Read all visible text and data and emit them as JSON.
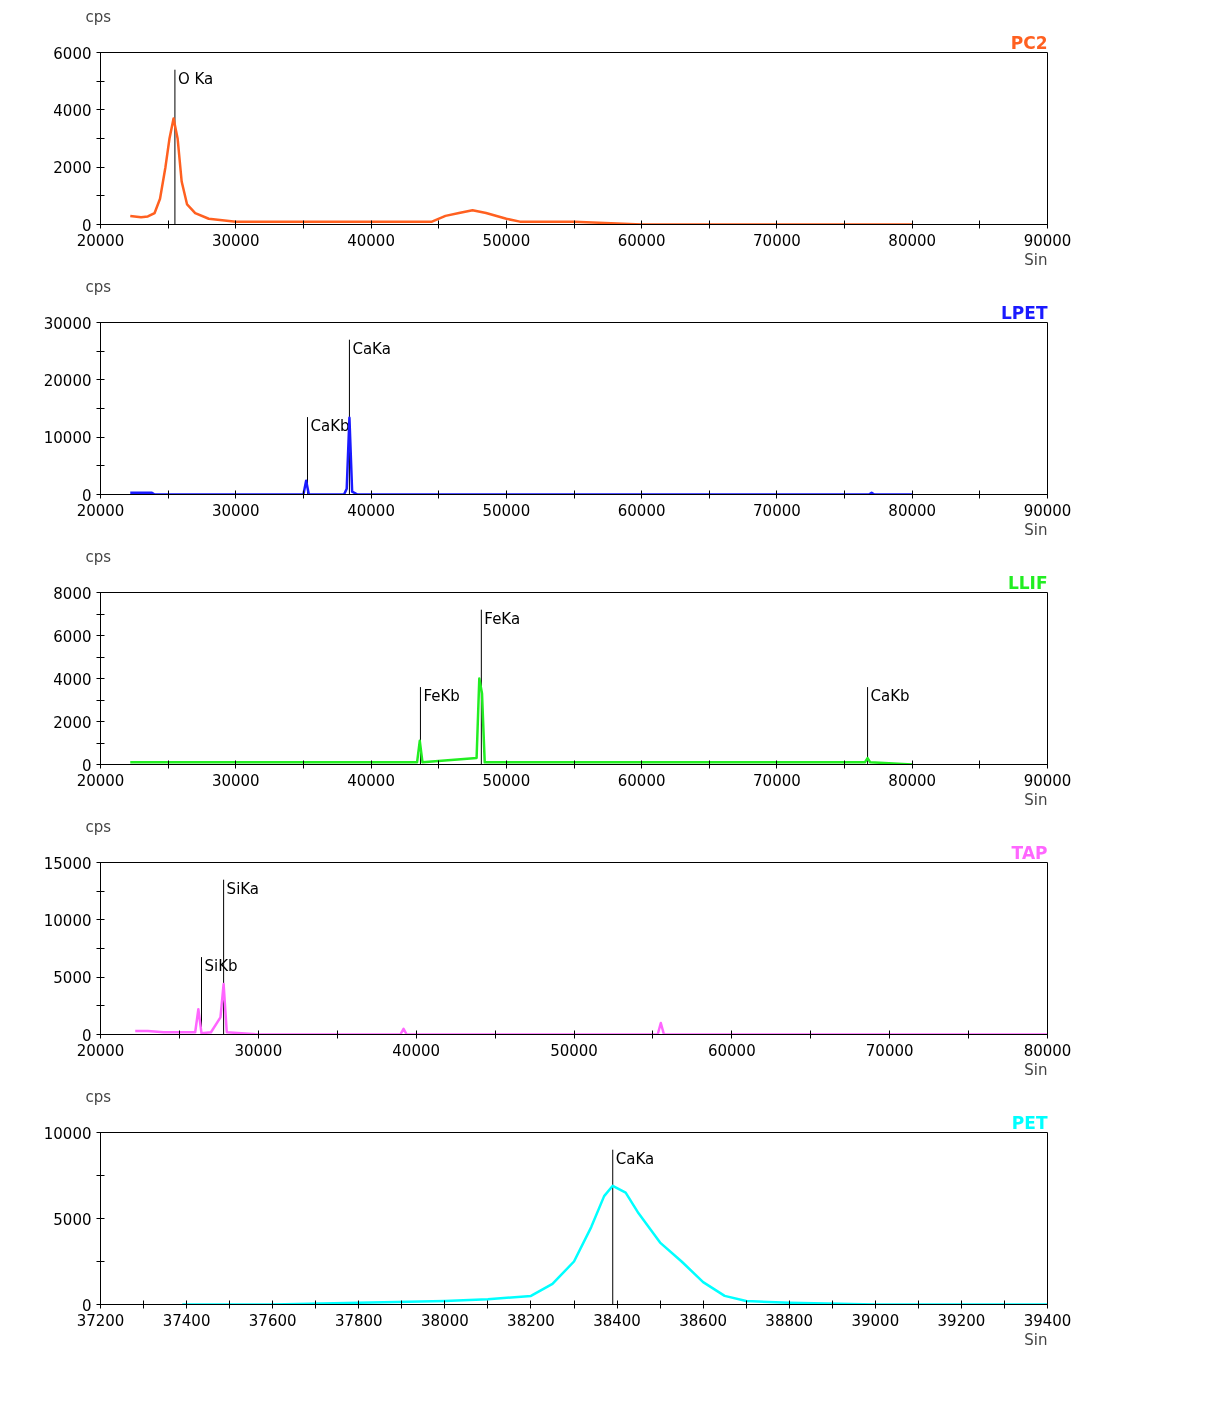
{
  "chart_data": [
    {
      "type": "line",
      "ylabel": "cps",
      "xlabel": "Sin",
      "grid": false,
      "series": [
        {
          "name": "PC2",
          "color": "#ff6020",
          "x": [
            22200,
            23000,
            23500,
            24000,
            24400,
            24800,
            25100,
            25400,
            25700,
            26000,
            26400,
            27000,
            28000,
            30000,
            35000,
            40000,
            44500,
            45500,
            46500,
            47500,
            48500,
            50000,
            51000,
            55000,
            60000,
            70000,
            80000
          ],
          "values": [
            300,
            250,
            280,
            400,
            900,
            2000,
            3000,
            3700,
            3000,
            1500,
            700,
            400,
            200,
            100,
            100,
            100,
            100,
            300,
            400,
            500,
            400,
            200,
            100,
            100,
            0,
            0,
            0
          ]
        }
      ],
      "xlim": [
        20000,
        90000
      ],
      "ylim": [
        0,
        6000
      ],
      "xticks": [
        20000,
        {
          "value": 25000,
          "label": null
        },
        30000,
        {
          "value": 35000,
          "label": null
        },
        40000,
        {
          "value": 45000,
          "label": null
        },
        50000,
        {
          "value": 55000,
          "label": null
        },
        60000,
        {
          "value": 65000,
          "label": null
        },
        70000,
        {
          "value": 75000,
          "label": null
        },
        80000,
        {
          "value": 85000,
          "label": null
        },
        90000
      ],
      "yticks": [
        0,
        {
          "value": 1000,
          "label": null
        },
        2000,
        {
          "value": 3000,
          "label": null
        },
        4000,
        {
          "value": 5000,
          "label": null
        },
        6000
      ],
      "ref_lines": [
        {
          "axis": "x",
          "value": 25500,
          "label": "O Ka"
        }
      ]
    },
    {
      "type": "line",
      "ylabel": "cps",
      "xlabel": "Sin",
      "grid": false,
      "series": [
        {
          "name": "LPET",
          "color": "#1a1aff",
          "x": [
            22200,
            23800,
            24000,
            35000,
            35200,
            35400,
            38000,
            38200,
            38400,
            38600,
            39000,
            76800,
            77000,
            77200,
            80000
          ],
          "values": [
            300,
            300,
            0,
            0,
            2400,
            0,
            0,
            1000,
            13400,
            500,
            0,
            0,
            300,
            0,
            0
          ]
        }
      ],
      "xlim": [
        20000,
        90000
      ],
      "ylim": [
        0,
        30000
      ],
      "xticks": [
        20000,
        {
          "value": 25000,
          "label": null
        },
        30000,
        {
          "value": 35000,
          "label": null
        },
        40000,
        {
          "value": 45000,
          "label": null
        },
        50000,
        {
          "value": 55000,
          "label": null
        },
        60000,
        {
          "value": 65000,
          "label": null
        },
        70000,
        {
          "value": 75000,
          "label": null
        },
        80000,
        {
          "value": 85000,
          "label": null
        },
        90000
      ],
      "yticks": [
        0,
        {
          "value": 5000,
          "label": null
        },
        10000,
        {
          "value": 15000,
          "label": null
        },
        20000,
        {
          "value": 25000,
          "label": null
        },
        30000
      ],
      "ref_lines": [
        {
          "axis": "x",
          "value": 35300,
          "label": "CaKb"
        },
        {
          "axis": "x",
          "value": 38400,
          "label": "CaKa"
        }
      ]
    },
    {
      "type": "line",
      "ylabel": "cps",
      "xlabel": "Sin",
      "grid": false,
      "series": [
        {
          "name": "LLIF",
          "color": "#22ee22",
          "x": [
            22200,
            30000,
            40000,
            43400,
            43600,
            43800,
            47800,
            48000,
            48200,
            48400,
            50000,
            60000,
            76500,
            76700,
            76900,
            80000
          ],
          "values": [
            100,
            100,
            100,
            100,
            1100,
            100,
            300,
            4000,
            3300,
            100,
            100,
            100,
            100,
            300,
            100,
            0
          ]
        }
      ],
      "xlim": [
        20000,
        90000
      ],
      "ylim": [
        0,
        8000
      ],
      "xticks": [
        20000,
        {
          "value": 25000,
          "label": null
        },
        30000,
        {
          "value": 35000,
          "label": null
        },
        40000,
        {
          "value": 45000,
          "label": null
        },
        50000,
        {
          "value": 55000,
          "label": null
        },
        60000,
        {
          "value": 65000,
          "label": null
        },
        70000,
        {
          "value": 75000,
          "label": null
        },
        80000,
        {
          "value": 85000,
          "label": null
        },
        90000
      ],
      "yticks": [
        0,
        {
          "value": 1000,
          "label": null
        },
        2000,
        {
          "value": 3000,
          "label": null
        },
        4000,
        {
          "value": 5000,
          "label": null
        },
        6000,
        {
          "value": 7000,
          "label": null
        },
        8000
      ],
      "ref_lines": [
        {
          "axis": "x",
          "value": 43650,
          "label": "FeKb"
        },
        {
          "axis": "x",
          "value": 48150,
          "label": "FeKa"
        },
        {
          "axis": "x",
          "value": 76700,
          "label": "CaKb"
        }
      ]
    },
    {
      "type": "line",
      "ylabel": "cps",
      "xlabel": "Sin",
      "grid": false,
      "series": [
        {
          "name": "TAP",
          "color": "#ff66ff",
          "x": [
            22200,
            23000,
            24000,
            26000,
            26200,
            26400,
            27000,
            27600,
            27800,
            28000,
            30000,
            39000,
            39200,
            39400,
            55300,
            55500,
            55700,
            80000
          ],
          "values": [
            300,
            300,
            200,
            200,
            2200,
            100,
            200,
            1500,
            4400,
            200,
            0,
            0,
            500,
            0,
            0,
            1000,
            0,
            0
          ]
        }
      ],
      "xlim": [
        20000,
        80000
      ],
      "ylim": [
        0,
        15000
      ],
      "xticks": [
        20000,
        {
          "value": 25000,
          "label": null
        },
        30000,
        {
          "value": 35000,
          "label": null
        },
        40000,
        {
          "value": 45000,
          "label": null
        },
        50000,
        {
          "value": 55000,
          "label": null
        },
        60000,
        {
          "value": 65000,
          "label": null
        },
        70000,
        {
          "value": 75000,
          "label": null
        },
        80000
      ],
      "yticks": [
        0,
        {
          "value": 2500,
          "label": null
        },
        5000,
        {
          "value": 7500,
          "label": null
        },
        10000,
        {
          "value": 12500,
          "label": null
        },
        15000
      ],
      "ref_lines": [
        {
          "axis": "x",
          "value": 26400,
          "label": "SiKb"
        },
        {
          "axis": "x",
          "value": 27800,
          "label": "SiKa"
        }
      ]
    },
    {
      "type": "line",
      "ylabel": "cps",
      "xlabel": "Sin",
      "grid": false,
      "series": [
        {
          "name": "PET",
          "color": "#00ffff",
          "x": [
            37390,
            37600,
            37800,
            38000,
            38100,
            38200,
            38250,
            38300,
            38340,
            38370,
            38390,
            38420,
            38450,
            38500,
            38550,
            38600,
            38650,
            38700,
            38800,
            39000,
            39400
          ],
          "values": [
            0,
            0,
            100,
            200,
            300,
            500,
            1200,
            2500,
            4500,
            6300,
            6900,
            6500,
            5300,
            3600,
            2500,
            1300,
            500,
            200,
            100,
            0,
            0
          ]
        }
      ],
      "xlim": [
        37200,
        39400
      ],
      "ylim": [
        0,
        10000
      ],
      "xticks": [
        37200,
        {
          "value": 37300,
          "label": null
        },
        37400,
        {
          "value": 37500,
          "label": null
        },
        37600,
        {
          "value": 37700,
          "label": null
        },
        37800,
        {
          "value": 37900,
          "label": null
        },
        38000,
        {
          "value": 38100,
          "label": null
        },
        38200,
        {
          "value": 38300,
          "label": null
        },
        38400,
        {
          "value": 38500,
          "label": null
        },
        38600,
        {
          "value": 38700,
          "label": null
        },
        38800,
        {
          "value": 38900,
          "label": null
        },
        39000,
        {
          "value": 39100,
          "label": null
        },
        39200,
        {
          "value": 39300,
          "label": null
        },
        39400
      ],
      "yticks": [
        0,
        {
          "value": 2500,
          "label": null
        },
        5000,
        {
          "value": 7500,
          "label": null
        },
        10000
      ],
      "ref_lines": [
        {
          "axis": "x",
          "value": 38390,
          "label": "CaKa"
        }
      ]
    }
  ]
}
